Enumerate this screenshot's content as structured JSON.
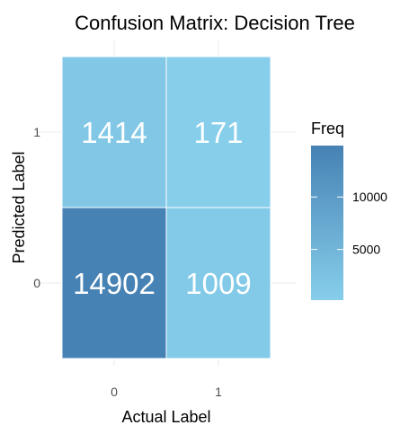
{
  "chart_data": {
    "type": "heatmap",
    "title": "Confusion Matrix: Decision Tree",
    "xlabel": "Actual Label",
    "ylabel": "Predicted Label",
    "x_categories": [
      "0",
      "1"
    ],
    "y_categories": [
      "0",
      "1"
    ],
    "cells": [
      {
        "actual": "0",
        "predicted": "0",
        "value": 14902
      },
      {
        "actual": "1",
        "predicted": "0",
        "value": 1009
      },
      {
        "actual": "0",
        "predicted": "1",
        "value": 1414
      },
      {
        "actual": "1",
        "predicted": "1",
        "value": 171
      }
    ],
    "legend": {
      "title": "Freq",
      "ticks": [
        5000,
        10000
      ],
      "tick_labels": [
        "5000",
        "10000"
      ],
      "low_color": "#87ceeb",
      "high_color": "#4682b4",
      "position": "right"
    },
    "grid": true
  }
}
